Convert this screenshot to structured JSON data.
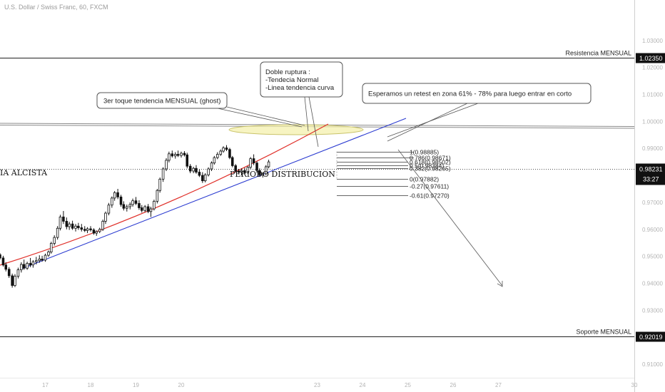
{
  "chart_data": {
    "type": "candlestick",
    "symbol_label": "U.S. Dollar / Swiss Franc, 60, FXCM",
    "price_axis": {
      "min": 0.905,
      "max": 1.045,
      "ticks": [
        {
          "value": 1.03,
          "label": "1.03000"
        },
        {
          "value": 1.02,
          "label": "1.02000"
        },
        {
          "value": 1.01,
          "label": "1.01000"
        },
        {
          "value": 1.0,
          "label": "1.00000"
        },
        {
          "value": 0.99,
          "label": "0.99000"
        },
        {
          "value": 0.98,
          "label": "0.98000"
        },
        {
          "value": 0.97,
          "label": "0.97000"
        },
        {
          "value": 0.96,
          "label": "0.96000"
        },
        {
          "value": 0.95,
          "label": "0.95000"
        },
        {
          "value": 0.94,
          "label": "0.94000"
        },
        {
          "value": 0.93,
          "label": "0.93000"
        },
        {
          "value": 0.92,
          "label": "0.92000"
        },
        {
          "value": 0.91,
          "label": "0.91000"
        }
      ]
    },
    "time_axis": {
      "min": 16.0,
      "max": 30.0,
      "ticks": [
        {
          "value": 17,
          "label": "17"
        },
        {
          "value": 18,
          "label": "18"
        },
        {
          "value": 19,
          "label": "19"
        },
        {
          "value": 20,
          "label": "20"
        },
        {
          "value": 23,
          "label": "23"
        },
        {
          "value": 24,
          "label": "24"
        },
        {
          "value": 25,
          "label": "25"
        },
        {
          "value": 26,
          "label": "26"
        },
        {
          "value": 27,
          "label": "27"
        },
        {
          "value": 30,
          "label": "30"
        }
      ]
    },
    "levels": [
      {
        "name": "Resistencia MENSUAL",
        "value": 1.0235,
        "tag": "1.02350"
      },
      {
        "name": "Soporte MENSUAL",
        "value": 0.92019,
        "tag": "0.92019"
      }
    ],
    "current_price": {
      "value": 0.98231,
      "tag": "0.98231",
      "countdown": "33:27"
    },
    "fib_levels": [
      {
        "label": "1(0.98885)",
        "value": 0.98885
      },
      {
        "label": "0.786(0.98671)",
        "value": 0.98671
      },
      {
        "label": "0.618(0.98502)",
        "value": 0.98502
      },
      {
        "label": "0.5(0.98384)",
        "value": 0.98384
      },
      {
        "label": "0.382(0.98265)",
        "value": 0.98265
      },
      {
        "label": "0(0.97882)",
        "value": 0.97882
      },
      {
        "label": "-0.27(0.97611)",
        "value": 0.97611
      },
      {
        "label": "-0.61(0.97270)",
        "value": 0.9727
      }
    ],
    "annotations": {
      "tendencia_text": "IA ALCISTA",
      "distribucion_text": "PERIODO DISTRIBUCION",
      "callout_ghost": "3er toque tendencia MENSUAL (ghost)",
      "callout_doble": [
        "Doble ruptura :",
        "-Tendecia Normal",
        "-Linea tendencia curva"
      ],
      "callout_retest": "Esperamos un retest en zona 61% - 78% para luego entrar en corto"
    },
    "candles": [
      [
        16.0,
        0.9506,
        0.9512,
        0.9488,
        0.9494
      ],
      [
        16.07,
        0.9494,
        0.9502,
        0.9462,
        0.9468
      ],
      [
        16.13,
        0.9468,
        0.9478,
        0.9444,
        0.9452
      ],
      [
        16.2,
        0.9452,
        0.946,
        0.942,
        0.9428
      ],
      [
        16.27,
        0.9428,
        0.9436,
        0.9384,
        0.9392
      ],
      [
        16.33,
        0.9392,
        0.9434,
        0.9386,
        0.9426
      ],
      [
        16.4,
        0.9426,
        0.9458,
        0.9418,
        0.945
      ],
      [
        16.47,
        0.945,
        0.9478,
        0.944,
        0.947
      ],
      [
        16.53,
        0.947,
        0.9488,
        0.945,
        0.9456
      ],
      [
        16.6,
        0.9456,
        0.948,
        0.945,
        0.9474
      ],
      [
        16.67,
        0.9474,
        0.9494,
        0.946,
        0.9468
      ],
      [
        16.73,
        0.9468,
        0.9486,
        0.9458,
        0.948
      ],
      [
        16.8,
        0.948,
        0.9498,
        0.947,
        0.9484
      ],
      [
        16.87,
        0.9484,
        0.9504,
        0.9476,
        0.949
      ],
      [
        16.93,
        0.949,
        0.9502,
        0.948,
        0.9486
      ],
      [
        17.0,
        0.9486,
        0.951,
        0.948,
        0.9504
      ],
      [
        17.07,
        0.9504,
        0.9522,
        0.9498,
        0.9516
      ],
      [
        17.13,
        0.9516,
        0.9554,
        0.951,
        0.9548
      ],
      [
        17.2,
        0.9548,
        0.9578,
        0.954,
        0.957
      ],
      [
        17.27,
        0.957,
        0.9612,
        0.9562,
        0.9604
      ],
      [
        17.33,
        0.9604,
        0.9654,
        0.9596,
        0.9646
      ],
      [
        17.4,
        0.9646,
        0.9668,
        0.962,
        0.963
      ],
      [
        17.47,
        0.963,
        0.9644,
        0.96,
        0.961
      ],
      [
        17.53,
        0.961,
        0.9628,
        0.9598,
        0.962
      ],
      [
        17.6,
        0.962,
        0.9632,
        0.9598,
        0.9604
      ],
      [
        17.67,
        0.9604,
        0.962,
        0.9592,
        0.9612
      ],
      [
        17.73,
        0.9612,
        0.9624,
        0.9598,
        0.9606
      ],
      [
        17.8,
        0.9606,
        0.962,
        0.9592,
        0.96
      ],
      [
        17.87,
        0.96,
        0.9612,
        0.959,
        0.9596
      ],
      [
        17.93,
        0.9596,
        0.9608,
        0.9586,
        0.9602
      ],
      [
        18.0,
        0.9602,
        0.9612,
        0.9592,
        0.9598
      ],
      [
        18.07,
        0.9598,
        0.9604,
        0.958,
        0.9586
      ],
      [
        18.13,
        0.9586,
        0.9596,
        0.9576,
        0.9592
      ],
      [
        18.2,
        0.9592,
        0.9606,
        0.9586,
        0.96
      ],
      [
        18.27,
        0.96,
        0.9636,
        0.9594,
        0.963
      ],
      [
        18.33,
        0.963,
        0.9666,
        0.962,
        0.966
      ],
      [
        18.4,
        0.966,
        0.9698,
        0.9652,
        0.969
      ],
      [
        18.47,
        0.969,
        0.9722,
        0.968,
        0.9716
      ],
      [
        18.53,
        0.9716,
        0.9742,
        0.9706,
        0.9736
      ],
      [
        18.6,
        0.9736,
        0.975,
        0.9712,
        0.972
      ],
      [
        18.67,
        0.972,
        0.9728,
        0.9684,
        0.9692
      ],
      [
        18.73,
        0.9692,
        0.9704,
        0.967,
        0.9678
      ],
      [
        18.8,
        0.9678,
        0.9692,
        0.9666,
        0.9684
      ],
      [
        18.87,
        0.9684,
        0.97,
        0.9674,
        0.9692
      ],
      [
        18.93,
        0.9692,
        0.9714,
        0.9684,
        0.9706
      ],
      [
        19.0,
        0.9706,
        0.972,
        0.969,
        0.9696
      ],
      [
        19.07,
        0.9696,
        0.9708,
        0.9672,
        0.968
      ],
      [
        19.13,
        0.968,
        0.969,
        0.9662,
        0.967
      ],
      [
        19.2,
        0.967,
        0.969,
        0.9664,
        0.9684
      ],
      [
        19.27,
        0.9684,
        0.9694,
        0.966,
        0.9666
      ],
      [
        19.33,
        0.9666,
        0.9684,
        0.9646,
        0.9676
      ],
      [
        19.4,
        0.9676,
        0.971,
        0.967,
        0.9704
      ],
      [
        19.47,
        0.9704,
        0.975,
        0.9696,
        0.9744
      ],
      [
        19.53,
        0.9744,
        0.9792,
        0.9736,
        0.9786
      ],
      [
        19.6,
        0.9786,
        0.983,
        0.9776,
        0.9824
      ],
      [
        19.67,
        0.9824,
        0.9864,
        0.9816,
        0.9856
      ],
      [
        19.73,
        0.9856,
        0.9888,
        0.9848,
        0.988
      ],
      [
        19.8,
        0.988,
        0.9892,
        0.9866,
        0.9872
      ],
      [
        19.87,
        0.9872,
        0.9886,
        0.9862,
        0.9878
      ],
      [
        19.93,
        0.9878,
        0.9892,
        0.9868,
        0.9874
      ],
      [
        20.0,
        0.9874,
        0.9888,
        0.9866,
        0.9882
      ],
      [
        20.07,
        0.9882,
        0.989,
        0.987,
        0.9876
      ],
      [
        20.13,
        0.9876,
        0.9884,
        0.9826,
        0.9834
      ],
      [
        20.2,
        0.9834,
        0.9842,
        0.9808,
        0.9816
      ],
      [
        20.27,
        0.9816,
        0.9832,
        0.9808,
        0.9826
      ],
      [
        20.33,
        0.9826,
        0.9838,
        0.9806,
        0.9812
      ],
      [
        20.4,
        0.9812,
        0.9822,
        0.9794,
        0.98
      ],
      [
        20.47,
        0.98,
        0.9812,
        0.9772,
        0.978
      ],
      [
        20.53,
        0.978,
        0.9808,
        0.9774,
        0.9802
      ],
      [
        20.6,
        0.9802,
        0.983,
        0.9796,
        0.9824
      ],
      [
        20.67,
        0.9824,
        0.9852,
        0.9816,
        0.9846
      ],
      [
        20.73,
        0.9846,
        0.9872,
        0.984,
        0.9866
      ],
      [
        20.8,
        0.9866,
        0.9886,
        0.986,
        0.9878
      ],
      [
        20.87,
        0.9878,
        0.9896,
        0.9872,
        0.989
      ],
      [
        20.93,
        0.989,
        0.9908,
        0.9884,
        0.9902
      ],
      [
        21.0,
        0.9902,
        0.9912,
        0.989,
        0.9896
      ],
      [
        21.07,
        0.9896,
        0.9902,
        0.986,
        0.9866
      ],
      [
        21.13,
        0.9866,
        0.9872,
        0.983,
        0.9836
      ],
      [
        21.2,
        0.9836,
        0.9842,
        0.981,
        0.9816
      ],
      [
        21.27,
        0.9816,
        0.9824,
        0.9804,
        0.9812
      ],
      [
        21.33,
        0.9812,
        0.9826,
        0.98,
        0.9818
      ],
      [
        21.4,
        0.9818,
        0.9828,
        0.9804,
        0.981
      ],
      [
        21.47,
        0.981,
        0.9834,
        0.9806,
        0.983
      ],
      [
        21.53,
        0.983,
        0.9868,
        0.9824,
        0.9862
      ],
      [
        21.6,
        0.9862,
        0.9878,
        0.9838,
        0.9846
      ],
      [
        21.67,
        0.9846,
        0.9852,
        0.981,
        0.9818
      ],
      [
        21.73,
        0.9818,
        0.9826,
        0.9796,
        0.9802
      ],
      [
        21.8,
        0.9802,
        0.9812,
        0.9792,
        0.9806
      ],
      [
        21.87,
        0.9806,
        0.9838,
        0.98,
        0.9832
      ],
      [
        21.93,
        0.9832,
        0.9858,
        0.9826,
        0.985
      ]
    ]
  }
}
